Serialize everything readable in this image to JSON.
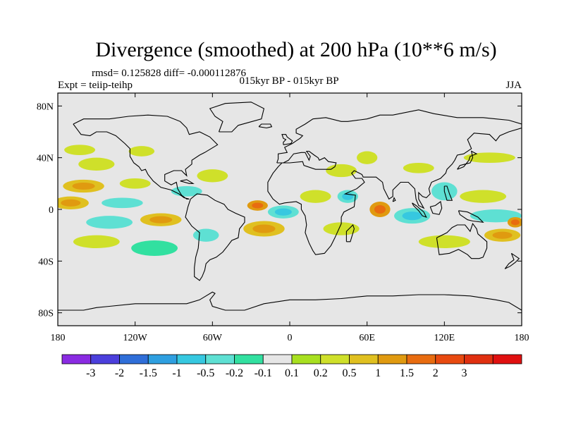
{
  "chart_data": {
    "type": "contour-map",
    "title": "Divergence (smoothed) at 200 hPa (10**6 m/s)",
    "stats": "rmsd= 0.125828 diff= -0.000112876",
    "left_label": "Expt = teiip-teihp",
    "center_label": "015kyr BP - 015kyr BP",
    "right_label": "JJA",
    "x_axis": {
      "range": [
        -180,
        180
      ],
      "ticks": [
        {
          "value": -180,
          "label": "180"
        },
        {
          "value": -120,
          "label": "120W"
        },
        {
          "value": -60,
          "label": "60W"
        },
        {
          "value": 0,
          "label": "0"
        },
        {
          "value": 60,
          "label": "60E"
        },
        {
          "value": 120,
          "label": "120E"
        },
        {
          "value": 180,
          "label": "180"
        }
      ]
    },
    "y_axis": {
      "range": [
        -90,
        90
      ],
      "ticks": [
        {
          "value": 80,
          "label": "80N"
        },
        {
          "value": 40,
          "label": "40N"
        },
        {
          "value": 0,
          "label": "0"
        },
        {
          "value": -40,
          "label": "40S"
        },
        {
          "value": -80,
          "label": "80S"
        }
      ]
    },
    "colorbar": {
      "colors": [
        "#8a2be2",
        "#4b3fdc",
        "#2f6ed8",
        "#2e9fe0",
        "#36c8e0",
        "#5ee0d3",
        "#32e0a0",
        "#e6e6e6",
        "#a8e020",
        "#cfe02a",
        "#e0c020",
        "#e09a10",
        "#e86c10",
        "#e84a10",
        "#e03010",
        "#e01010"
      ],
      "labels": [
        "-3",
        "-2",
        "-1.5",
        "-1",
        "-0.5",
        "-0.2",
        "-0.1",
        "0.1",
        "0.2",
        "0.5",
        "1",
        "1.5",
        "2",
        "3"
      ]
    },
    "blobs": [
      {
        "lon": -163,
        "lat": 46,
        "rx": 12,
        "ry": 4,
        "value": 0.3
      },
      {
        "lon": -150,
        "lat": 35,
        "rx": 14,
        "ry": 5,
        "value": 0.4
      },
      {
        "lon": -115,
        "lat": 45,
        "rx": 10,
        "ry": 4,
        "value": 0.3
      },
      {
        "lon": -160,
        "lat": 18,
        "rx": 16,
        "ry": 5,
        "value": 0.6
      },
      {
        "lon": -120,
        "lat": 20,
        "rx": 12,
        "ry": 4,
        "value": 0.4
      },
      {
        "lon": -170,
        "lat": 5,
        "rx": 14,
        "ry": 5,
        "value": 0.6
      },
      {
        "lon": -130,
        "lat": 5,
        "rx": 16,
        "ry": 4,
        "value": -0.3
      },
      {
        "lon": -80,
        "lat": 14,
        "rx": 12,
        "ry": 4,
        "value": -0.3
      },
      {
        "lon": -60,
        "lat": 26,
        "rx": 12,
        "ry": 5,
        "value": 0.4
      },
      {
        "lon": -140,
        "lat": -10,
        "rx": 18,
        "ry": 5,
        "value": -0.3
      },
      {
        "lon": -100,
        "lat": -8,
        "rx": 16,
        "ry": 5,
        "value": 0.5
      },
      {
        "lon": -150,
        "lat": -25,
        "rx": 18,
        "ry": 5,
        "value": 0.3
      },
      {
        "lon": -105,
        "lat": -30,
        "rx": 18,
        "ry": 6,
        "value": -0.2
      },
      {
        "lon": -65,
        "lat": -20,
        "rx": 10,
        "ry": 5,
        "value": -0.3
      },
      {
        "lon": -25,
        "lat": 3,
        "rx": 8,
        "ry": 4,
        "value": 1.0
      },
      {
        "lon": -5,
        "lat": -2,
        "rx": 12,
        "ry": 5,
        "value": -0.5
      },
      {
        "lon": -20,
        "lat": -15,
        "rx": 16,
        "ry": 6,
        "value": 0.5
      },
      {
        "lon": 20,
        "lat": 10,
        "rx": 12,
        "ry": 5,
        "value": 0.3
      },
      {
        "lon": 40,
        "lat": 30,
        "rx": 12,
        "ry": 5,
        "value": 0.4
      },
      {
        "lon": 45,
        "lat": 10,
        "rx": 8,
        "ry": 5,
        "value": -0.5
      },
      {
        "lon": 70,
        "lat": 0,
        "rx": 8,
        "ry": 6,
        "value": 1.2
      },
      {
        "lon": 95,
        "lat": -5,
        "rx": 14,
        "ry": 6,
        "value": -0.5
      },
      {
        "lon": 40,
        "lat": -15,
        "rx": 14,
        "ry": 5,
        "value": 0.4
      },
      {
        "lon": 60,
        "lat": 40,
        "rx": 8,
        "ry": 5,
        "value": 0.3
      },
      {
        "lon": 100,
        "lat": 32,
        "rx": 12,
        "ry": 4,
        "value": 0.3
      },
      {
        "lon": 120,
        "lat": 14,
        "rx": 10,
        "ry": 7,
        "value": -0.4
      },
      {
        "lon": 150,
        "lat": 10,
        "rx": 18,
        "ry": 5,
        "value": 0.3
      },
      {
        "lon": 160,
        "lat": -5,
        "rx": 20,
        "ry": 5,
        "value": -0.3
      },
      {
        "lon": 120,
        "lat": -25,
        "rx": 20,
        "ry": 5,
        "value": 0.3
      },
      {
        "lon": 165,
        "lat": -20,
        "rx": 14,
        "ry": 5,
        "value": 0.6
      },
      {
        "lon": 175,
        "lat": -10,
        "rx": 6,
        "ry": 4,
        "value": 1.2
      },
      {
        "lon": 155,
        "lat": 40,
        "rx": 20,
        "ry": 4,
        "value": 0.3
      }
    ]
  }
}
